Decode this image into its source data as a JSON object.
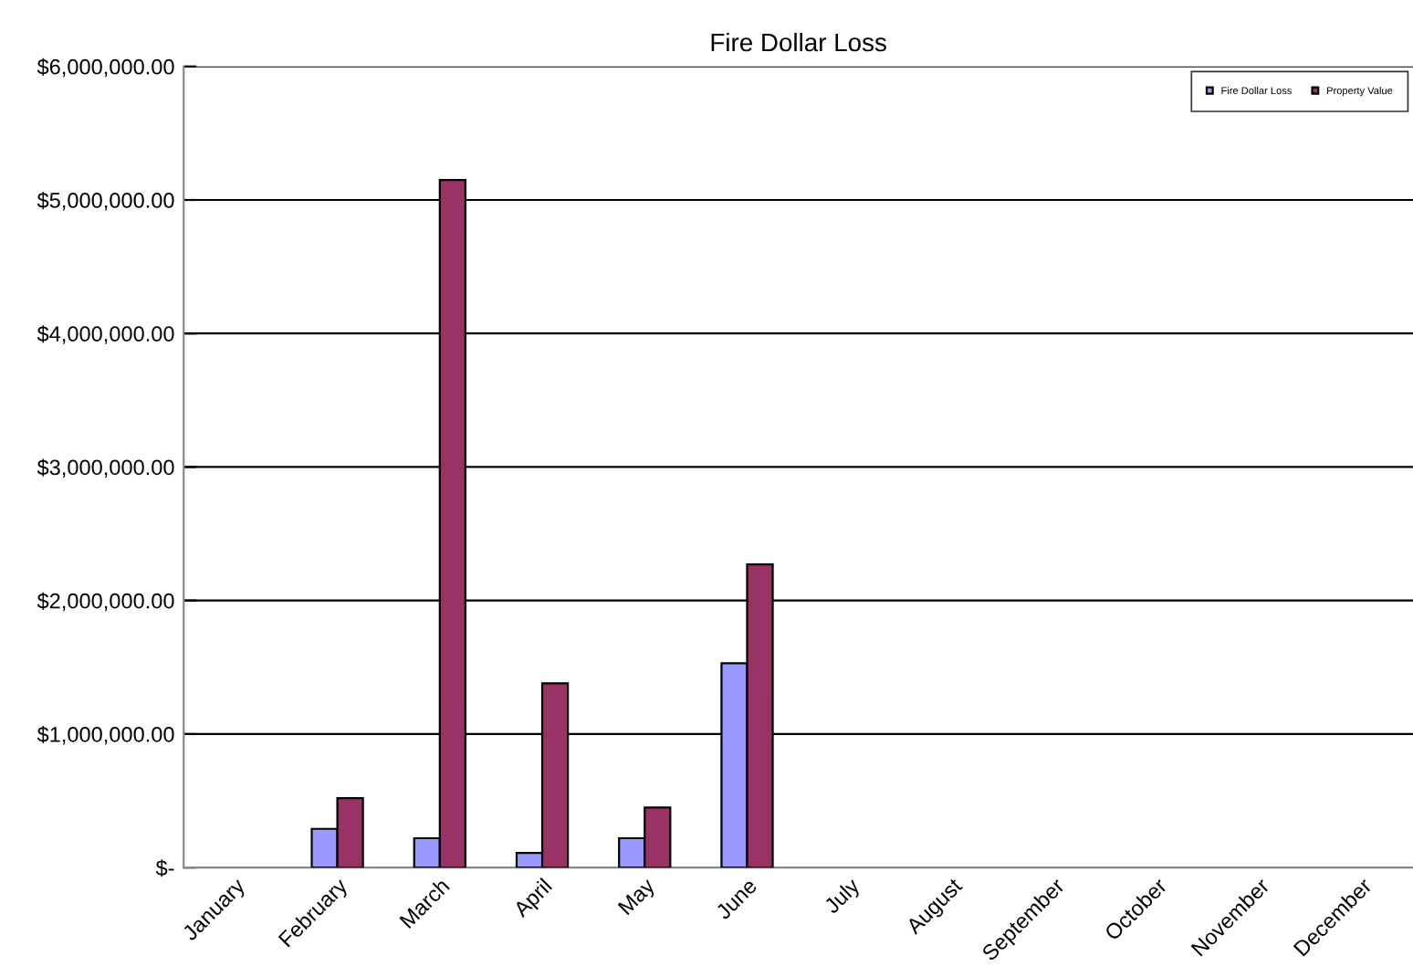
{
  "chart_data": {
    "type": "bar",
    "title": "Fire Dollar Loss",
    "categories": [
      "January",
      "February",
      "March",
      "April",
      "May",
      "June",
      "July",
      "August",
      "September",
      "October",
      "November",
      "December"
    ],
    "series": [
      {
        "name": "Fire Dollar Loss",
        "color": "#9999ff",
        "values": [
          null,
          290000,
          220000,
          110000,
          220000,
          1530000,
          null,
          null,
          null,
          null,
          null,
          null
        ]
      },
      {
        "name": "Property Value",
        "color": "#993366",
        "values": [
          null,
          520000,
          5150000,
          1380000,
          450000,
          2270000,
          null,
          null,
          null,
          null,
          null,
          null
        ]
      }
    ],
    "ylim": [
      0,
      6000000
    ],
    "yticks": [
      {
        "value": 0,
        "label": "$-"
      },
      {
        "value": 1000000,
        "label": "$1,000,000.00"
      },
      {
        "value": 2000000,
        "label": "$2,000,000.00"
      },
      {
        "value": 3000000,
        "label": "$3,000,000.00"
      },
      {
        "value": 4000000,
        "label": "$4,000,000.00"
      },
      {
        "value": 5000000,
        "label": "$5,000,000.00"
      },
      {
        "value": 6000000,
        "label": "$6,000,000.00"
      }
    ],
    "grid": "y",
    "legend": "top right"
  }
}
